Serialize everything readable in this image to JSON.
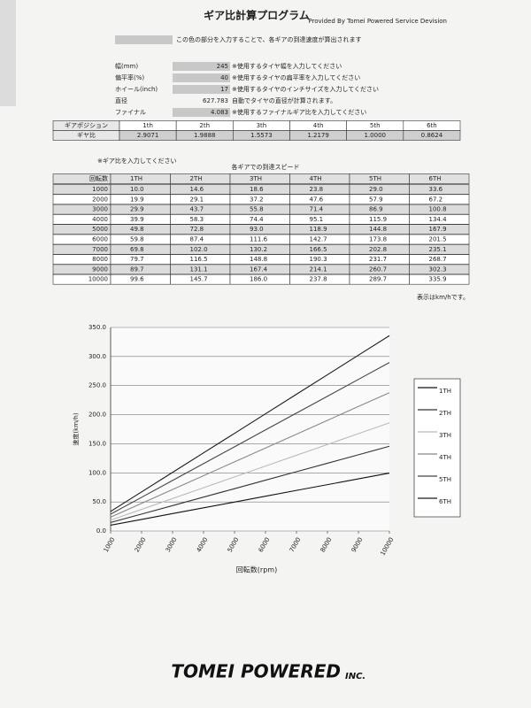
{
  "header": {
    "title": "ギア比計算プログラム",
    "subtitle": "Provided By Tomei Powered Service Devision"
  },
  "input_note": "この色の部分を入力することで、各ギアの到達速度が算出されます",
  "inputs": [
    {
      "label": "幅(mm)",
      "value": "245",
      "note": "※使用するタイヤ幅を入力してください"
    },
    {
      "label": "偏平率(%)",
      "value": "40",
      "note": "※使用するタイヤの扁平率を入力してください"
    },
    {
      "label": "ホイール(inch)",
      "value": "17",
      "note": "※使用するタイヤのインチサイズを入力してください"
    },
    {
      "label": "直径",
      "value": "627.783",
      "note": "自動でタイヤの直径が計算されます。"
    },
    {
      "label": "ファイナル",
      "value": "4.083",
      "note": "※使用するファイナルギア比を入力してください"
    }
  ],
  "gear_table": {
    "header": [
      "ギアポジション",
      "1th",
      "2th",
      "3th",
      "4th",
      "5th",
      "6th"
    ],
    "row": [
      "ギヤ比",
      "2.9071",
      "1.9888",
      "1.5573",
      "1.2179",
      "1.0000",
      "0.8624"
    ],
    "note": "※ギア比を入力してください"
  },
  "speed_table": {
    "title": "各ギアでの到達スピード",
    "header": [
      "回転数",
      "1TH",
      "2TH",
      "3TH",
      "4TH",
      "5TH",
      "6TH"
    ],
    "rows": [
      [
        "1000",
        "10.0",
        "14.6",
        "18.6",
        "23.8",
        "29.0",
        "33.6"
      ],
      [
        "2000",
        "19.9",
        "29.1",
        "37.2",
        "47.6",
        "57.9",
        "67.2"
      ],
      [
        "3000",
        "29.9",
        "43.7",
        "55.8",
        "71.4",
        "86.9",
        "100.8"
      ],
      [
        "4000",
        "39.9",
        "58.3",
        "74.4",
        "95.1",
        "115.9",
        "134.4"
      ],
      [
        "5000",
        "49.8",
        "72.8",
        "93.0",
        "118.9",
        "144.8",
        "167.9"
      ],
      [
        "6000",
        "59.8",
        "87.4",
        "111.6",
        "142.7",
        "173.8",
        "201.5"
      ],
      [
        "7000",
        "69.8",
        "102.0",
        "130.2",
        "166.5",
        "202.8",
        "235.1"
      ],
      [
        "8000",
        "79.7",
        "116.5",
        "148.8",
        "190.3",
        "231.7",
        "268.7"
      ],
      [
        "9000",
        "89.7",
        "131.1",
        "167.4",
        "214.1",
        "260.7",
        "302.3"
      ],
      [
        "10000",
        "99.6",
        "145.7",
        "186.0",
        "237.8",
        "289.7",
        "335.9"
      ]
    ],
    "note": "表示はkm/hです。"
  },
  "chart_data": {
    "type": "line",
    "x_label": "回転数(rpm)",
    "y_label": "速度(km/h)",
    "x": [
      1000,
      2000,
      3000,
      4000,
      5000,
      6000,
      7000,
      8000,
      9000,
      10000
    ],
    "xlim": [
      1000,
      10000
    ],
    "xticks": [
      1000,
      2000,
      3000,
      4000,
      5000,
      6000,
      7000,
      8000,
      9000,
      10000
    ],
    "ylim": [
      0,
      350
    ],
    "yticks": [
      {
        "value": 0,
        "label": "0.0"
      },
      {
        "value": 50,
        "label": "50.0"
      },
      {
        "value": 100,
        "label": "100.0"
      },
      {
        "value": 150,
        "label": "150.0"
      },
      {
        "value": 200,
        "label": "200.0"
      },
      {
        "value": 250,
        "label": "250.0"
      },
      {
        "value": 300,
        "label": "300.0"
      },
      {
        "value": 350,
        "label": "350.0"
      }
    ],
    "grid": true,
    "series": [
      {
        "name": "1TH",
        "color": "#111111",
        "values": [
          10.0,
          19.9,
          29.9,
          39.9,
          49.8,
          59.8,
          69.8,
          79.7,
          89.7,
          99.6
        ]
      },
      {
        "name": "2TH",
        "color": "#333333",
        "values": [
          14.6,
          29.1,
          43.7,
          58.3,
          72.8,
          87.4,
          102.0,
          116.5,
          131.1,
          145.7
        ]
      },
      {
        "name": "3TH",
        "color": "#bbbbbb",
        "values": [
          18.6,
          37.2,
          55.8,
          74.4,
          93.0,
          111.6,
          130.2,
          148.8,
          167.4,
          186.0
        ]
      },
      {
        "name": "4TH",
        "color": "#888888",
        "values": [
          23.8,
          47.6,
          71.4,
          95.1,
          118.9,
          142.7,
          166.5,
          190.3,
          214.1,
          237.8
        ]
      },
      {
        "name": "5TH",
        "color": "#444444",
        "values": [
          29.0,
          57.9,
          86.9,
          115.9,
          144.8,
          173.8,
          202.8,
          231.7,
          260.7,
          289.7
        ]
      },
      {
        "name": "6TH",
        "color": "#1a1a1a",
        "values": [
          33.6,
          67.2,
          100.8,
          134.4,
          167.9,
          201.5,
          235.1,
          268.7,
          302.3,
          335.9
        ]
      }
    ]
  },
  "footer": {
    "brand": "TOMEI POWERED",
    "suffix": "INC."
  }
}
